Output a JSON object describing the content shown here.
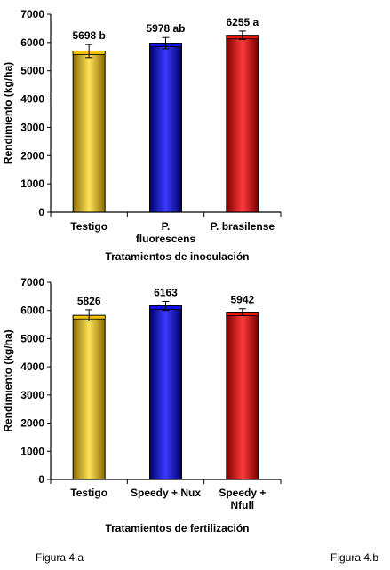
{
  "chart_data": [
    {
      "type": "bar",
      "categories": [
        [
          "Testigo"
        ],
        [
          "P.",
          "fluorescens"
        ],
        [
          "P. brasilense"
        ]
      ],
      "values": [
        5698,
        5978,
        6255
      ],
      "errors": [
        230,
        200,
        150
      ],
      "data_labels": [
        "5698 b",
        "5978 ab",
        "6255 a"
      ],
      "colors": [
        "#f5c400",
        "#1010e8",
        "#ee1111"
      ],
      "xlabel": "Tratamientos de inoculación",
      "ylabel": "Rendimiento (kg/ha)",
      "ylim": [
        0,
        7000
      ],
      "yticks": [
        0,
        1000,
        2000,
        3000,
        4000,
        5000,
        6000,
        7000
      ],
      "grid": false
    },
    {
      "type": "bar",
      "categories": [
        [
          "Testigo"
        ],
        [
          "Speedy + Nux"
        ],
        [
          "Speedy +",
          "Nfull"
        ]
      ],
      "values": [
        5826,
        6163,
        5942
      ],
      "errors": [
        200,
        160,
        120
      ],
      "data_labels": [
        "5826",
        "6163",
        "5942"
      ],
      "colors": [
        "#f5c400",
        "#1010e8",
        "#ee1111"
      ],
      "xlabel": "Tratamientos de fertilización",
      "ylabel": "Rendimiento (kg/ha)",
      "ylim": [
        0,
        7000
      ],
      "yticks": [
        0,
        1000,
        2000,
        3000,
        4000,
        5000,
        6000,
        7000
      ],
      "grid": false
    }
  ],
  "captions": {
    "left": "Figura 4.a",
    "right": "Figura 4.b"
  }
}
